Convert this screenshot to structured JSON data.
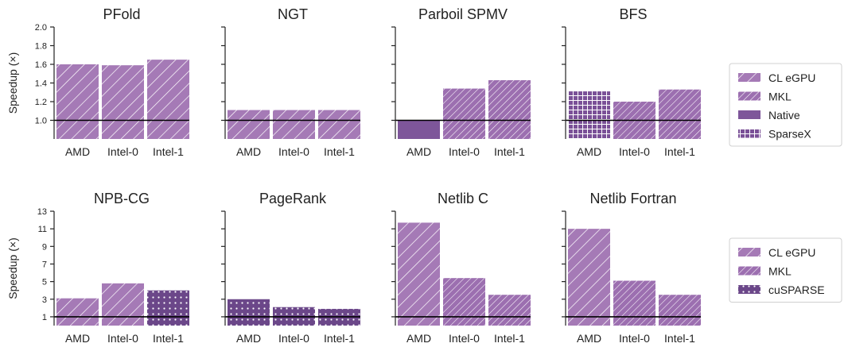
{
  "colors": {
    "bar": "#a57ab6",
    "bar_dark": "#7e569a",
    "bar_darker": "#6b4789",
    "baseline": "#000000",
    "axis": "#222222"
  },
  "legends": [
    {
      "entries": [
        {
          "label": "CL eGPU",
          "pattern": "diag-wide"
        },
        {
          "label": "MKL",
          "pattern": "diag-dense"
        },
        {
          "label": "Native",
          "pattern": "solid"
        },
        {
          "label": "SparseX",
          "pattern": "grid"
        }
      ]
    },
    {
      "entries": [
        {
          "label": "CL eGPU",
          "pattern": "diag-wide"
        },
        {
          "label": "MKL",
          "pattern": "diag-dense"
        },
        {
          "label": "cuSPARSE",
          "pattern": "dots"
        }
      ]
    }
  ],
  "chart_data": [
    {
      "type": "bar",
      "title": "PFold",
      "ylabel": "Speedup (×)",
      "ylim": [
        0.8,
        2.0
      ],
      "yticks": [
        "1.0",
        "1.2",
        "1.4",
        "1.6",
        "1.8",
        "2.0"
      ],
      "baseline": 1.0,
      "categories": [
        "AMD",
        "Intel-0",
        "Intel-1"
      ],
      "values": [
        1.6,
        1.59,
        1.65
      ],
      "series_per_bar": [
        "CL eGPU",
        "CL eGPU",
        "CL eGPU"
      ]
    },
    {
      "type": "bar",
      "title": "NGT",
      "ylabel": "",
      "ylim": [
        0.8,
        2.0
      ],
      "yticks": [],
      "baseline": 1.0,
      "categories": [
        "AMD",
        "Intel-0",
        "Intel-1"
      ],
      "values": [
        1.11,
        1.11,
        1.11
      ],
      "series_per_bar": [
        "CL eGPU",
        "CL eGPU",
        "CL eGPU"
      ]
    },
    {
      "type": "bar",
      "title": "Parboil SPMV",
      "ylabel": "",
      "ylim": [
        0.8,
        2.0
      ],
      "yticks": [],
      "baseline": 1.0,
      "categories": [
        "AMD",
        "Intel-0",
        "Intel-1"
      ],
      "values": [
        1.0,
        1.34,
        1.43
      ],
      "series_per_bar": [
        "Native",
        "MKL",
        "MKL"
      ]
    },
    {
      "type": "bar",
      "title": "BFS",
      "ylabel": "",
      "ylim": [
        0.8,
        2.0
      ],
      "yticks": [],
      "baseline": 1.0,
      "categories": [
        "AMD",
        "Intel-0",
        "Intel-1"
      ],
      "values": [
        1.31,
        1.2,
        1.33
      ],
      "series_per_bar": [
        "SparseX",
        "MKL",
        "MKL"
      ]
    },
    {
      "type": "bar",
      "title": "NPB-CG",
      "ylabel": "Speedup (×)",
      "ylim": [
        0,
        13
      ],
      "yticks": [
        "1",
        "3",
        "5",
        "7",
        "9",
        "11",
        "13"
      ],
      "baseline": 1.0,
      "categories": [
        "AMD",
        "Intel-0",
        "Intel-1"
      ],
      "values": [
        3.1,
        4.8,
        4.0
      ],
      "series_per_bar": [
        "CL eGPU",
        "CL eGPU",
        "cuSPARSE"
      ]
    },
    {
      "type": "bar",
      "title": "PageRank",
      "ylabel": "",
      "ylim": [
        0,
        13
      ],
      "yticks": [],
      "baseline": 1.0,
      "categories": [
        "AMD",
        "Intel-0",
        "Intel-1"
      ],
      "values": [
        3.0,
        2.1,
        1.9
      ],
      "series_per_bar": [
        "cuSPARSE",
        "cuSPARSE",
        "cuSPARSE"
      ]
    },
    {
      "type": "bar",
      "title": "Netlib C",
      "ylabel": "",
      "ylim": [
        0,
        13
      ],
      "yticks": [],
      "baseline": 1.0,
      "categories": [
        "AMD",
        "Intel-0",
        "Intel-1"
      ],
      "values": [
        11.7,
        5.4,
        3.5
      ],
      "series_per_bar": [
        "CL eGPU",
        "MKL",
        "MKL"
      ]
    },
    {
      "type": "bar",
      "title": "Netlib Fortran",
      "ylabel": "",
      "ylim": [
        0,
        13
      ],
      "yticks": [],
      "baseline": 1.0,
      "categories": [
        "AMD",
        "Intel-0",
        "Intel-1"
      ],
      "values": [
        11.0,
        5.1,
        3.5
      ],
      "series_per_bar": [
        "CL eGPU",
        "MKL",
        "MKL"
      ]
    }
  ]
}
